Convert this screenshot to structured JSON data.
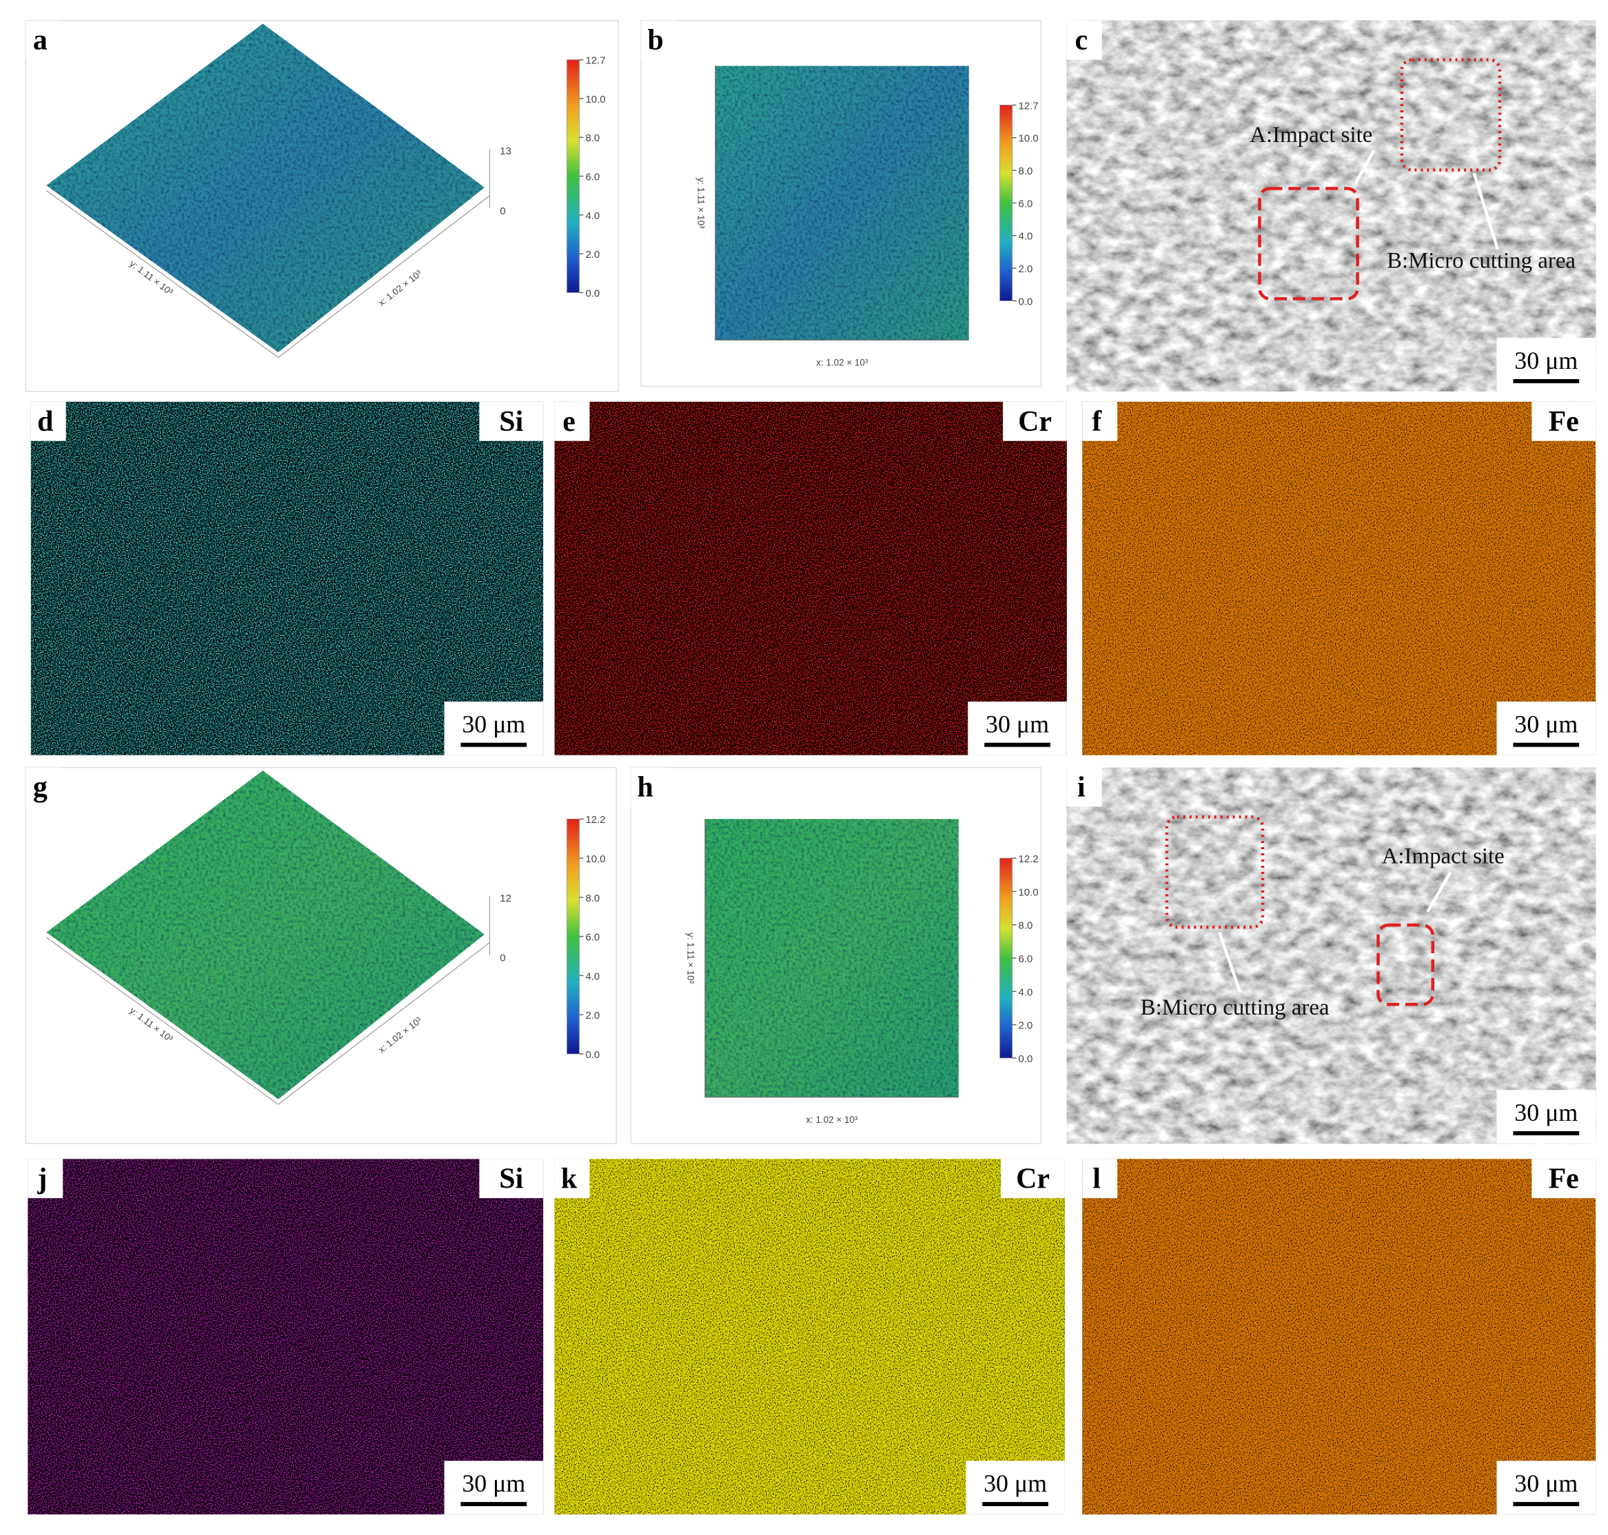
{
  "panels": [
    {
      "label": "a",
      "colorbar": [
        "12.7",
        "10.0",
        "8.0",
        "6.0",
        "4.0",
        "2.0",
        "0.0"
      ],
      "z_axis": [
        "13",
        "0"
      ],
      "x_axis": "x: 1.02 × 10³",
      "y_axis": "y: 1.11 × 10³"
    },
    {
      "label": "b",
      "colorbar": [
        "12.7",
        "10.0",
        "8.0",
        "6.0",
        "4.0",
        "2.0",
        "0.0"
      ],
      "x_axis": "x: 1.02 × 10³",
      "y_axis": "y: 1.11 × 10³"
    },
    {
      "label": "c",
      "annotations": [
        "A:Impact site",
        "B:Micro cutting area"
      ],
      "scale_bar": "30 μm"
    },
    {
      "label": "d",
      "element": "Si",
      "scale_bar": "30 μm"
    },
    {
      "label": "e",
      "element": "Cr",
      "scale_bar": "30 μm"
    },
    {
      "label": "f",
      "element": "Fe",
      "scale_bar": "30 μm"
    },
    {
      "label": "g",
      "colorbar": [
        "12.2",
        "10.0",
        "8.0",
        "6.0",
        "4.0",
        "2.0",
        "0.0"
      ],
      "z_axis": [
        "12",
        "0"
      ],
      "x_axis": "x: 1.02 × 10³",
      "y_axis": "y: 1.11 × 10³"
    },
    {
      "label": "h",
      "colorbar": [
        "12.2",
        "10.0",
        "8.0",
        "6.0",
        "4.0",
        "2.0",
        "0.0"
      ],
      "x_axis": "x: 1.02 × 10³",
      "y_axis": "y: 1.11 × 10³"
    },
    {
      "label": "i",
      "annotations": [
        "A:Impact site",
        "B:Micro cutting area"
      ],
      "scale_bar": "30 μm"
    },
    {
      "label": "j",
      "element": "Si",
      "scale_bar": "30 μm"
    },
    {
      "label": "k",
      "element": "Cr",
      "scale_bar": "30 μm"
    },
    {
      "label": "l",
      "element": "Fe",
      "scale_bar": "30 μm"
    }
  ]
}
